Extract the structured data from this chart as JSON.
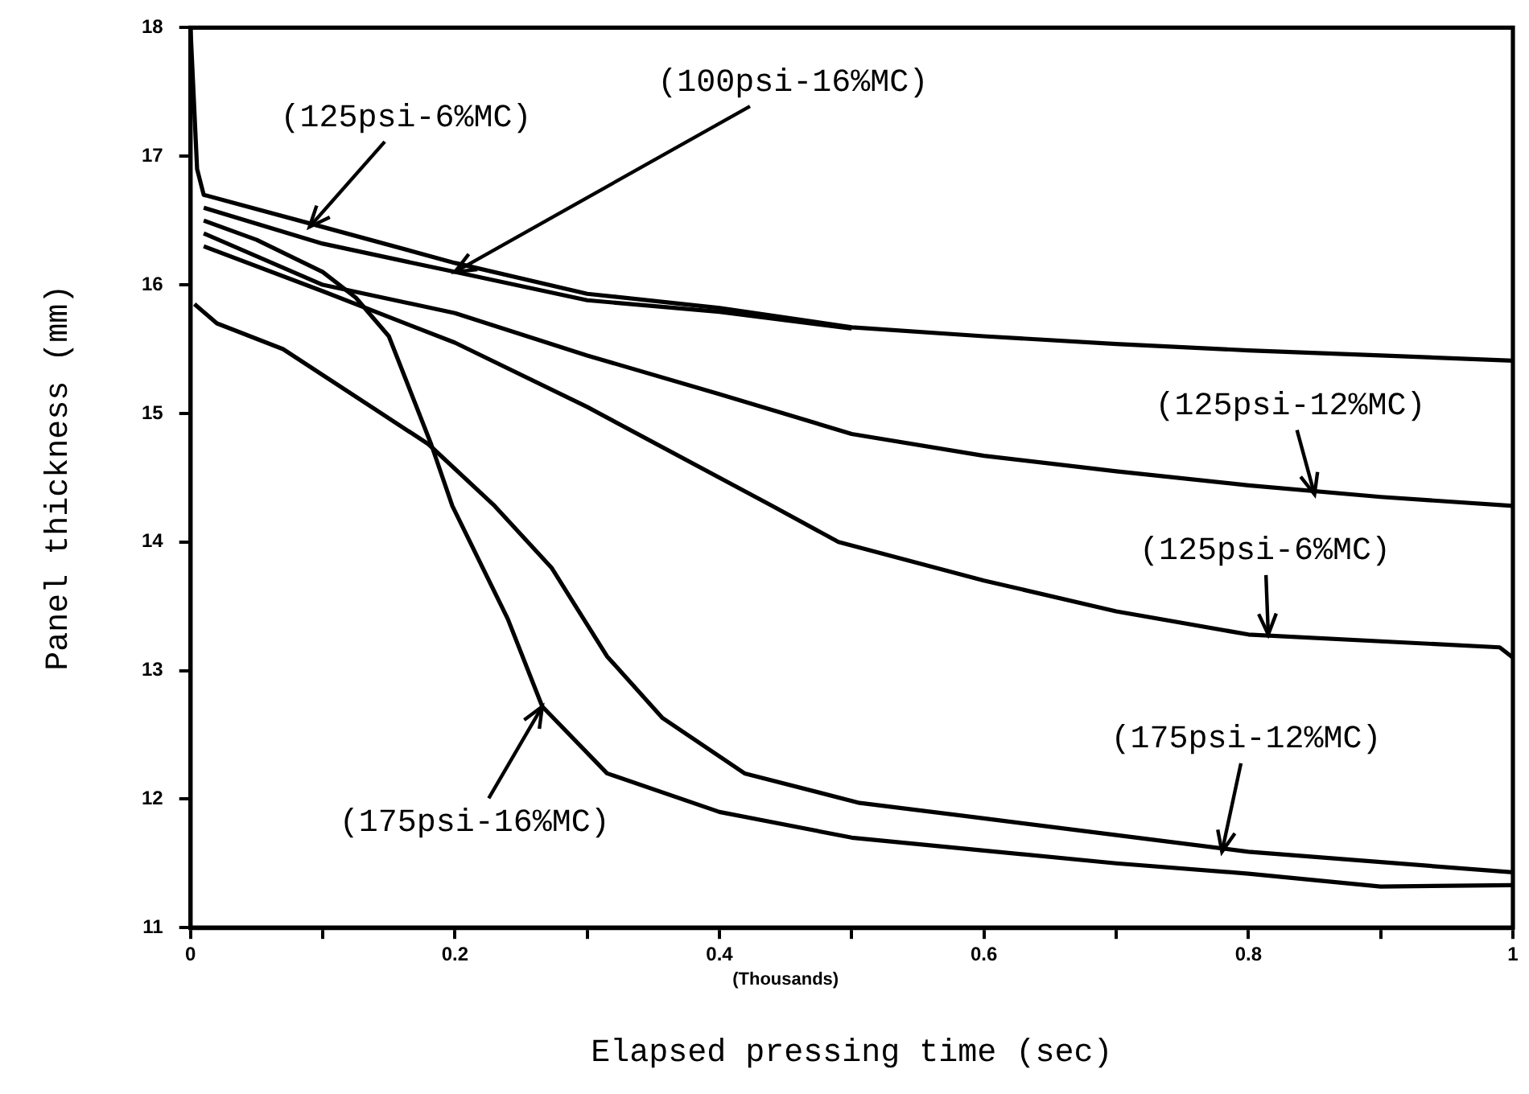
{
  "chart_data": {
    "type": "line",
    "xlabel": "Elapsed pressing time (sec)",
    "ylabel": "Panel thickness (mm)",
    "xlim": [
      0,
      1
    ],
    "ylim": [
      11,
      18
    ],
    "xticks": [
      0,
      {
        "value": 0.1,
        "label": null
      },
      0.2,
      {
        "value": 0.3,
        "label": null
      },
      0.4,
      {
        "value": 0.5,
        "label": null
      },
      0.6,
      {
        "value": 0.7,
        "label": null
      },
      0.8,
      {
        "value": 0.9,
        "label": null
      },
      1
    ],
    "yticks": [
      11,
      12,
      13,
      14,
      15,
      16,
      17,
      18
    ],
    "grid": false,
    "legend": false,
    "marker": "none",
    "line_style": "solid",
    "series": [
      {
        "color": "#000000",
        "x": [
          0,
          0.005,
          0.01,
          0.1,
          0.2,
          0.3,
          0.4,
          0.5,
          0.6,
          0.7,
          0.8,
          0.9,
          1
        ],
        "values": [
          18,
          16.9,
          16.7,
          16.45,
          16.17,
          15.93,
          15.82,
          15.67,
          15.6,
          15.54,
          15.49,
          15.45,
          15.41
        ]
      },
      {
        "color": "#000000",
        "x": [
          0.01,
          0.1,
          0.2,
          0.3,
          0.4,
          0.5
        ],
        "values": [
          16.6,
          16.32,
          16.1,
          15.88,
          15.79,
          15.66
        ]
      },
      {
        "color": "#000000",
        "x": [
          0.01,
          0.1,
          0.2,
          0.3,
          0.4,
          0.5,
          0.6,
          0.7,
          0.8,
          0.9,
          1
        ],
        "values": [
          16.4,
          16.0,
          15.78,
          15.45,
          15.15,
          14.84,
          14.67,
          14.55,
          14.44,
          14.35,
          14.28
        ]
      },
      {
        "color": "#000000",
        "x": [
          0.01,
          0.1,
          0.2,
          0.3,
          0.44,
          0.49,
          0.6,
          0.7,
          0.8,
          0.99,
          1
        ],
        "values": [
          16.3,
          15.95,
          15.55,
          15.05,
          14.28,
          14.0,
          13.7,
          13.46,
          13.28,
          13.18,
          13.1
        ]
      },
      {
        "color": "#000000",
        "x": [
          0.01,
          0.05,
          0.1,
          0.125,
          0.15,
          0.182,
          0.198,
          0.24,
          0.266,
          0.315,
          0.4,
          0.5,
          0.6,
          0.7,
          0.8,
          0.9,
          1
        ],
        "values": [
          16.5,
          16.35,
          16.1,
          15.9,
          15.6,
          14.76,
          14.28,
          13.4,
          12.72,
          12.2,
          11.9,
          11.7,
          11.6,
          11.5,
          11.42,
          11.32,
          11.33
        ]
      },
      {
        "color": "#000000",
        "x": [
          0.003,
          0.02,
          0.07,
          0.18,
          0.23,
          0.273,
          0.315,
          0.357,
          0.419,
          0.506,
          0.6,
          0.7,
          0.8,
          1
        ],
        "values": [
          15.85,
          15.7,
          15.5,
          14.76,
          14.28,
          13.8,
          13.11,
          12.63,
          12.2,
          11.97,
          11.85,
          11.72,
          11.59,
          11.43
        ]
      }
    ],
    "annotations": [
      {
        "text": "(125psi-6%MC)",
        "x": 0.09,
        "y": 16.45
      },
      {
        "text": "(100psi-16%MC)",
        "x": 0.2,
        "y": 16.1
      },
      {
        "text": "(125psi-12%MC)",
        "x": 0.85,
        "y": 14.37
      },
      {
        "text": "(125psi-6%MC)",
        "x": 0.815,
        "y": 13.28
      },
      {
        "text": "(175psi-12%MC)",
        "x": 0.78,
        "y": 11.59
      },
      {
        "text": "(175psi-16%MC)",
        "x": 0.266,
        "y": 12.72
      },
      "(Thousands)"
    ]
  }
}
